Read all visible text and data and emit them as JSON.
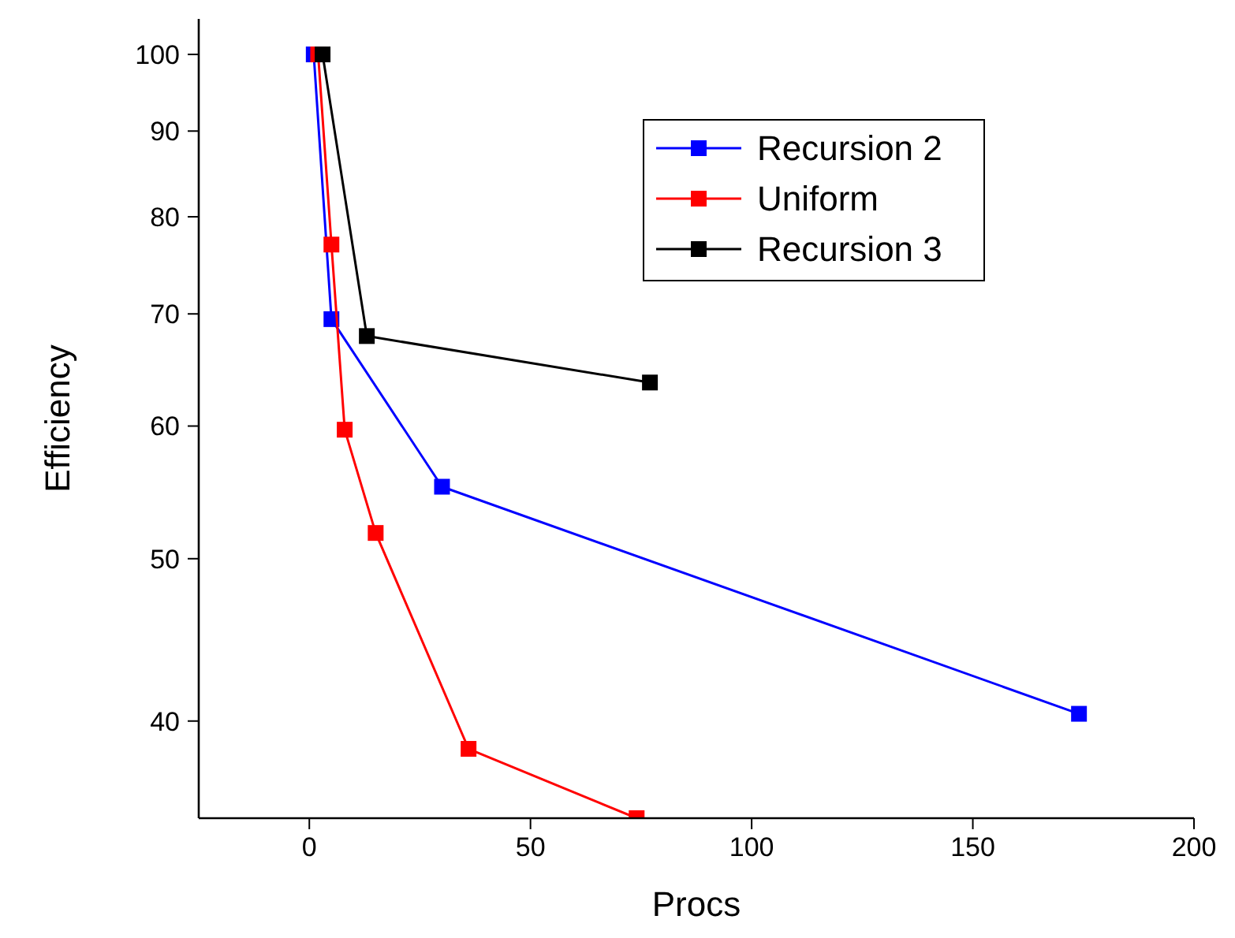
{
  "chart_data": {
    "type": "line",
    "xlabel": "Procs",
    "ylabel": "Efficiency",
    "log": "y",
    "xlim": [
      -25,
      200
    ],
    "xticks": [
      0,
      50,
      100,
      150,
      200
    ],
    "ylim": [
      35,
      105
    ],
    "yticks": [
      40,
      50,
      60,
      70,
      80,
      90,
      100
    ],
    "grid": false,
    "legend": "top right",
    "marker": "square",
    "line_style": "solid",
    "series": [
      {
        "name": "Recursion 2",
        "color": "#0000ff",
        "x": [
          1,
          5,
          30,
          174
        ],
        "values": [
          100,
          69.5,
          55.2,
          40.4
        ]
      },
      {
        "name": "Uniform",
        "color": "#ff0000",
        "x": [
          2,
          5,
          8,
          15,
          36,
          74
        ],
        "values": [
          100,
          77,
          59.7,
          51.8,
          38.5,
          35
        ]
      },
      {
        "name": "Recursion 3",
        "color": "#000000",
        "x": [
          3,
          13,
          77
        ],
        "values": [
          100,
          67.9,
          63.7
        ]
      }
    ]
  }
}
